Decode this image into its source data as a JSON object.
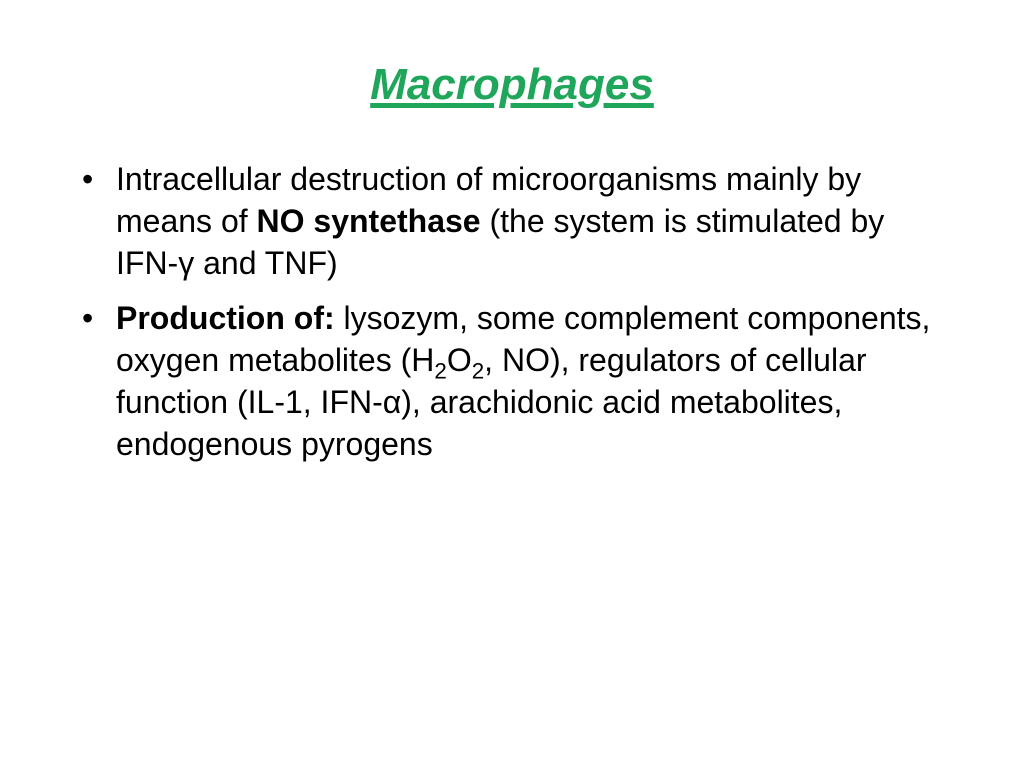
{
  "slide": {
    "title": "Macrophages",
    "title_color": "#1fa65a",
    "title_fontsize": 44,
    "body_fontsize": 32,
    "body_lineheight": 1.32,
    "background_color": "#ffffff",
    "bullets": [
      {
        "segments": [
          {
            "text": "Intracellular destruction of microorganisms mainly by means of ",
            "bold": false
          },
          {
            "text": "NO syntethase",
            "bold": true
          },
          {
            "text": " (the system is stimulated by IFN-γ and TNF)",
            "bold": false
          }
        ]
      },
      {
        "segments": [
          {
            "text": "Production of:",
            "bold": true
          },
          {
            "text": " lysozym, some complement components, oxygen metabolites (H",
            "bold": false
          },
          {
            "text": "2",
            "bold": false,
            "sub": true
          },
          {
            "text": "O",
            "bold": false
          },
          {
            "text": "2",
            "bold": false,
            "sub": true
          },
          {
            "text": ", NO), regulators of cellular function (IL-1, IFN-α), arachidonic acid metabolites, endogenous pyrogens",
            "bold": false
          }
        ]
      }
    ]
  }
}
